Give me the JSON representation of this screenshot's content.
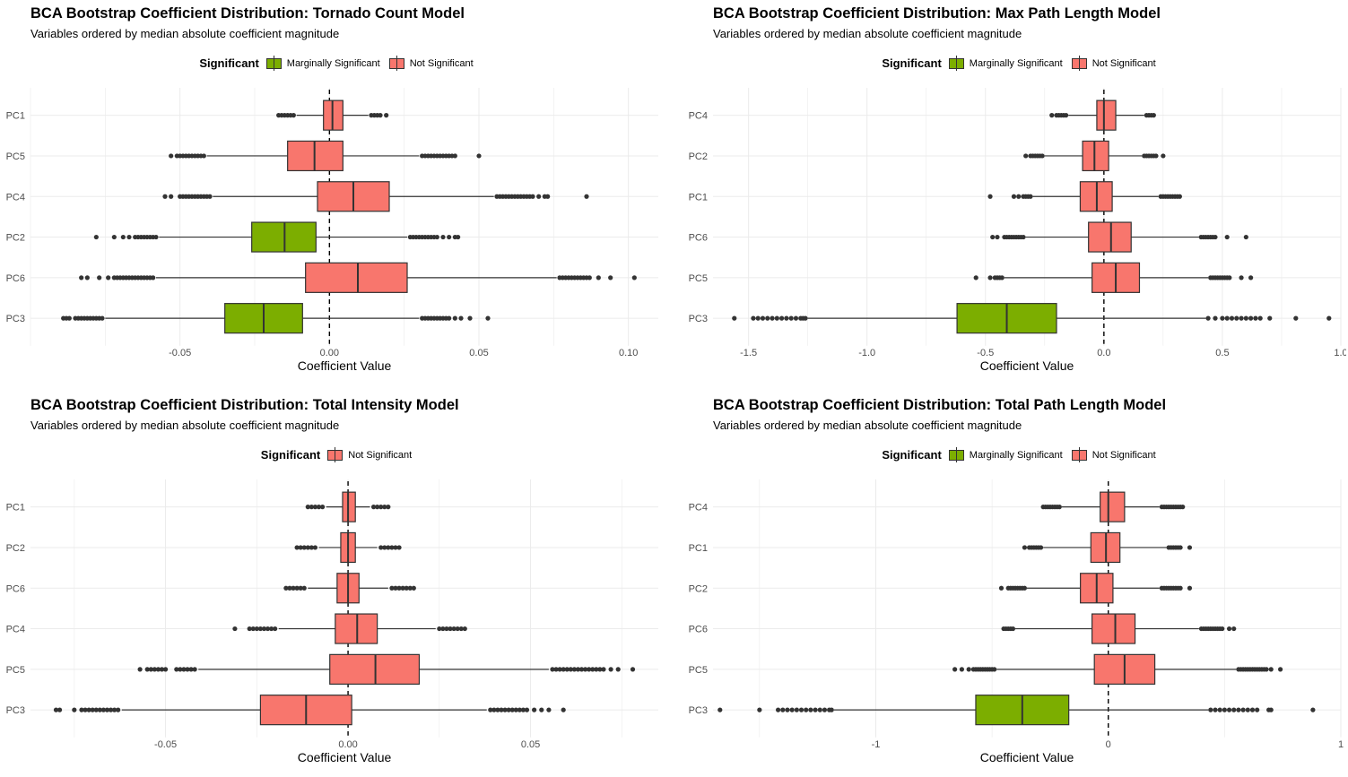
{
  "colors": {
    "marginal": "#7cae00",
    "not_sig": "#f8766d",
    "grid": "#ebebeb",
    "outline": "#333333",
    "outlier": "#333333"
  },
  "legend_title": "Significant",
  "chart_data": [
    {
      "type": "boxplot",
      "title": "BCA Bootstrap Coefficient Distribution: Tornado Count Model",
      "subtitle": "Variables ordered by median absolute coefficient magnitude",
      "xlabel": "Coefficient Value",
      "xlim": [
        -0.1,
        0.11
      ],
      "xticks": [
        -0.05,
        0.0,
        0.05,
        0.1
      ],
      "xtick_labels": [
        "-0.05",
        "0.00",
        "0.05",
        "0.10"
      ],
      "legend": [
        "Marginally Significant",
        "Not Significant"
      ],
      "series": [
        {
          "name": "PC1",
          "sig": "Not Significant",
          "q1": -0.002,
          "median": 0.001,
          "q3": 0.0045,
          "wlo": -0.011,
          "whi": 0.013,
          "outliers": [
            -0.017,
            -0.016,
            -0.015,
            -0.014,
            -0.013,
            -0.012,
            0.014,
            0.015,
            0.016,
            0.017,
            0.019
          ]
        },
        {
          "name": "PC5",
          "sig": "Not Significant",
          "q1": -0.014,
          "median": -0.005,
          "q3": 0.0045,
          "wlo": -0.041,
          "whi": 0.03,
          "outliers": [
            -0.053,
            -0.051,
            -0.05,
            -0.049,
            -0.048,
            -0.047,
            -0.046,
            -0.045,
            -0.044,
            -0.043,
            -0.042,
            0.031,
            0.032,
            0.033,
            0.034,
            0.035,
            0.036,
            0.037,
            0.038,
            0.039,
            0.04,
            0.041,
            0.042,
            0.05
          ]
        },
        {
          "name": "PC4",
          "sig": "Not Significant",
          "q1": -0.004,
          "median": 0.008,
          "q3": 0.02,
          "wlo": -0.039,
          "whi": 0.055,
          "outliers": [
            -0.055,
            -0.053,
            -0.05,
            -0.049,
            -0.048,
            -0.047,
            -0.046,
            -0.045,
            -0.044,
            -0.043,
            -0.042,
            -0.041,
            -0.04,
            0.056,
            0.057,
            0.058,
            0.059,
            0.06,
            0.061,
            0.062,
            0.063,
            0.064,
            0.065,
            0.066,
            0.067,
            0.068,
            0.07,
            0.072,
            0.073,
            0.086
          ]
        },
        {
          "name": "PC2",
          "sig": "Marginally Significant",
          "q1": -0.026,
          "median": -0.015,
          "q3": -0.0045,
          "wlo": -0.057,
          "whi": 0.026,
          "outliers": [
            -0.078,
            -0.072,
            -0.069,
            -0.067,
            -0.065,
            -0.064,
            -0.063,
            -0.062,
            -0.061,
            -0.06,
            -0.059,
            -0.058,
            0.027,
            0.028,
            0.029,
            0.03,
            0.031,
            0.032,
            0.033,
            0.034,
            0.035,
            0.036,
            0.038,
            0.04,
            0.042,
            0.043
          ]
        },
        {
          "name": "PC6",
          "sig": "Not Significant",
          "q1": -0.008,
          "median": 0.0095,
          "q3": 0.026,
          "wlo": -0.058,
          "whi": 0.076,
          "outliers": [
            -0.083,
            -0.081,
            -0.077,
            -0.074,
            -0.072,
            -0.071,
            -0.07,
            -0.069,
            -0.068,
            -0.067,
            -0.066,
            -0.065,
            -0.064,
            -0.063,
            -0.062,
            -0.061,
            -0.06,
            -0.059,
            0.077,
            0.078,
            0.079,
            0.08,
            0.081,
            0.082,
            0.083,
            0.084,
            0.085,
            0.086,
            0.087,
            0.09,
            0.094,
            0.102
          ]
        },
        {
          "name": "PC3",
          "sig": "Marginally Significant",
          "q1": -0.035,
          "median": -0.022,
          "q3": -0.009,
          "wlo": -0.075,
          "whi": 0.03,
          "outliers": [
            -0.089,
            -0.088,
            -0.087,
            -0.085,
            -0.084,
            -0.083,
            -0.082,
            -0.081,
            -0.08,
            -0.079,
            -0.078,
            -0.077,
            -0.076,
            0.031,
            0.032,
            0.033,
            0.034,
            0.035,
            0.036,
            0.037,
            0.038,
            0.039,
            0.04,
            0.042,
            0.044,
            0.047,
            0.053
          ]
        }
      ]
    },
    {
      "type": "boxplot",
      "title": "BCA Bootstrap Coefficient Distribution: Max Path Length Model",
      "subtitle": "Variables ordered by median absolute coefficient magnitude",
      "xlabel": "Coefficient Value",
      "xlim": [
        -1.65,
        1.0
      ],
      "xticks": [
        -1.5,
        -1.0,
        -0.5,
        0.0,
        0.5,
        1.0
      ],
      "xtick_labels": [
        "-1.5",
        "-1.0",
        "-0.5",
        "0.0",
        "0.5",
        "1.0"
      ],
      "legend": [
        "Marginally Significant",
        "Not Significant"
      ],
      "series": [
        {
          "name": "PC4",
          "sig": "Not Significant",
          "q1": -0.03,
          "median": 0.0,
          "q3": 0.05,
          "wlo": -0.15,
          "whi": 0.17,
          "outliers": [
            -0.22,
            -0.2,
            -0.19,
            -0.18,
            -0.17,
            -0.16,
            0.18,
            0.19,
            0.2,
            0.21
          ]
        },
        {
          "name": "PC2",
          "sig": "Not Significant",
          "q1": -0.09,
          "median": -0.04,
          "q3": 0.02,
          "wlo": -0.25,
          "whi": 0.16,
          "outliers": [
            -0.33,
            -0.31,
            -0.3,
            -0.29,
            -0.28,
            -0.27,
            -0.26,
            0.17,
            0.18,
            0.19,
            0.2,
            0.21,
            0.22,
            0.25
          ]
        },
        {
          "name": "PC1",
          "sig": "Not Significant",
          "q1": -0.1,
          "median": -0.03,
          "q3": 0.035,
          "wlo": -0.3,
          "whi": 0.23,
          "outliers": [
            -0.48,
            -0.38,
            -0.36,
            -0.34,
            -0.33,
            -0.32,
            -0.31,
            0.24,
            0.25,
            0.26,
            0.27,
            0.28,
            0.29,
            0.3,
            0.31,
            0.32
          ]
        },
        {
          "name": "PC6",
          "sig": "Not Significant",
          "q1": -0.065,
          "median": 0.03,
          "q3": 0.115,
          "wlo": -0.33,
          "whi": 0.4,
          "outliers": [
            -0.47,
            -0.45,
            -0.42,
            -0.41,
            -0.4,
            -0.39,
            -0.38,
            -0.37,
            -0.36,
            -0.35,
            -0.34,
            0.41,
            0.42,
            0.43,
            0.44,
            0.45,
            0.46,
            0.47,
            0.52,
            0.6
          ]
        },
        {
          "name": "PC5",
          "sig": "Not Significant",
          "q1": -0.05,
          "median": 0.05,
          "q3": 0.15,
          "wlo": -0.42,
          "whi": 0.44,
          "outliers": [
            -0.54,
            -0.48,
            -0.46,
            -0.45,
            -0.44,
            -0.43,
            0.45,
            0.46,
            0.47,
            0.48,
            0.49,
            0.5,
            0.51,
            0.52,
            0.53,
            0.58,
            0.62
          ]
        },
        {
          "name": "PC3",
          "sig": "Marginally Significant",
          "q1": -0.62,
          "median": -0.41,
          "q3": -0.2,
          "wlo": -1.25,
          "whi": 0.43,
          "outliers": [
            -1.56,
            -1.48,
            -1.46,
            -1.44,
            -1.42,
            -1.4,
            -1.38,
            -1.36,
            -1.34,
            -1.32,
            -1.3,
            -1.28,
            -1.27,
            -1.26,
            0.44,
            0.47,
            0.5,
            0.52,
            0.54,
            0.56,
            0.58,
            0.6,
            0.62,
            0.64,
            0.66,
            0.7,
            0.81,
            0.95
          ]
        }
      ]
    },
    {
      "type": "boxplot",
      "title": "BCA Bootstrap Coefficient Distribution: Total Intensity Model",
      "subtitle": "Variables ordered by median absolute coefficient magnitude",
      "xlabel": "Coefficient Value",
      "xlim": [
        -0.087,
        0.085
      ],
      "xticks": [
        -0.05,
        0.0,
        0.05
      ],
      "xtick_labels": [
        "-0.05",
        "0.00",
        "0.05"
      ],
      "legend": [
        "Not Significant"
      ],
      "series": [
        {
          "name": "PC1",
          "sig": "Not Significant",
          "q1": -0.0015,
          "median": 0.0,
          "q3": 0.002,
          "wlo": -0.006,
          "whi": 0.006,
          "outliers": [
            -0.011,
            -0.01,
            -0.009,
            -0.008,
            -0.007,
            0.007,
            0.008,
            0.009,
            0.01,
            0.011
          ]
        },
        {
          "name": "PC2",
          "sig": "Not Significant",
          "q1": -0.002,
          "median": 0.0,
          "q3": 0.002,
          "wlo": -0.008,
          "whi": 0.008,
          "outliers": [
            -0.014,
            -0.013,
            -0.012,
            -0.011,
            -0.01,
            -0.009,
            0.009,
            0.01,
            0.011,
            0.012,
            0.013,
            0.014
          ]
        },
        {
          "name": "PC6",
          "sig": "Not Significant",
          "q1": -0.003,
          "median": 0.0,
          "q3": 0.003,
          "wlo": -0.011,
          "whi": 0.011,
          "outliers": [
            -0.017,
            -0.016,
            -0.015,
            -0.014,
            -0.013,
            -0.012,
            0.012,
            0.013,
            0.014,
            0.015,
            0.016,
            0.017,
            0.018
          ]
        },
        {
          "name": "PC4",
          "sig": "Not Significant",
          "q1": -0.0035,
          "median": 0.0025,
          "q3": 0.008,
          "wlo": -0.019,
          "whi": 0.024,
          "outliers": [
            -0.031,
            -0.027,
            -0.026,
            -0.025,
            -0.024,
            -0.023,
            -0.022,
            -0.021,
            -0.02,
            0.025,
            0.026,
            0.027,
            0.028,
            0.029,
            0.03,
            0.031,
            0.032
          ]
        },
        {
          "name": "PC5",
          "sig": "Not Significant",
          "q1": -0.005,
          "median": 0.0075,
          "q3": 0.0195,
          "wlo": -0.041,
          "whi": 0.055,
          "outliers": [
            -0.057,
            -0.055,
            -0.054,
            -0.053,
            -0.052,
            -0.051,
            -0.05,
            -0.047,
            -0.046,
            -0.045,
            -0.044,
            -0.043,
            -0.042,
            0.056,
            0.057,
            0.058,
            0.059,
            0.06,
            0.061,
            0.062,
            0.063,
            0.064,
            0.065,
            0.066,
            0.067,
            0.068,
            0.069,
            0.07,
            0.072,
            0.074,
            0.078
          ]
        },
        {
          "name": "PC3",
          "sig": "Not Significant",
          "q1": -0.024,
          "median": -0.0115,
          "q3": 0.001,
          "wlo": -0.062,
          "whi": 0.038,
          "outliers": [
            -0.08,
            -0.079,
            -0.075,
            -0.073,
            -0.072,
            -0.071,
            -0.07,
            -0.069,
            -0.068,
            -0.067,
            -0.066,
            -0.065,
            -0.064,
            -0.063,
            0.039,
            0.04,
            0.041,
            0.042,
            0.043,
            0.044,
            0.045,
            0.046,
            0.047,
            0.048,
            0.049,
            0.051,
            0.053,
            0.055,
            0.059
          ]
        }
      ]
    },
    {
      "type": "boxplot",
      "title": "BCA Bootstrap Coefficient Distribution: Total Path Length Model",
      "subtitle": "Variables ordered by median absolute coefficient magnitude",
      "xlabel": "Coefficient Value",
      "xlim": [
        -1.7,
        1.0
      ],
      "xticks": [
        -1,
        0,
        1
      ],
      "xtick_labels": [
        "-1",
        "0",
        "1"
      ],
      "legend": [
        "Marginally Significant",
        "Not Significant"
      ],
      "series": [
        {
          "name": "PC4",
          "sig": "Not Significant",
          "q1": -0.035,
          "median": 0.0,
          "q3": 0.07,
          "wlo": -0.2,
          "whi": 0.22,
          "outliers": [
            -0.28,
            -0.27,
            -0.26,
            -0.25,
            -0.24,
            -0.23,
            -0.22,
            -0.21,
            0.23,
            0.24,
            0.25,
            0.26,
            0.27,
            0.28,
            0.29,
            0.3,
            0.31,
            0.32
          ]
        },
        {
          "name": "PC1",
          "sig": "Not Significant",
          "q1": -0.075,
          "median": -0.01,
          "q3": 0.05,
          "wlo": -0.28,
          "whi": 0.25,
          "outliers": [
            -0.36,
            -0.34,
            -0.33,
            -0.32,
            -0.31,
            -0.3,
            -0.29,
            0.26,
            0.27,
            0.28,
            0.29,
            0.3,
            0.31,
            0.35
          ]
        },
        {
          "name": "PC2",
          "sig": "Not Significant",
          "q1": -0.12,
          "median": -0.05,
          "q3": 0.02,
          "wlo": -0.35,
          "whi": 0.22,
          "outliers": [
            -0.46,
            -0.43,
            -0.42,
            -0.41,
            -0.4,
            -0.39,
            -0.38,
            -0.37,
            -0.36,
            0.23,
            0.24,
            0.25,
            0.26,
            0.27,
            0.28,
            0.29,
            0.3,
            0.31,
            0.35
          ]
        },
        {
          "name": "PC6",
          "sig": "Not Significant",
          "q1": -0.07,
          "median": 0.03,
          "q3": 0.115,
          "wlo": -0.4,
          "whi": 0.39,
          "outliers": [
            -0.45,
            -0.44,
            -0.43,
            -0.42,
            -0.41,
            0.4,
            0.41,
            0.42,
            0.43,
            0.44,
            0.45,
            0.46,
            0.47,
            0.48,
            0.49,
            0.52,
            0.54
          ]
        },
        {
          "name": "PC5",
          "sig": "Not Significant",
          "q1": -0.06,
          "median": 0.07,
          "q3": 0.2,
          "wlo": -0.48,
          "whi": 0.55,
          "outliers": [
            -0.66,
            -0.63,
            -0.6,
            -0.58,
            -0.57,
            -0.56,
            -0.55,
            -0.54,
            -0.53,
            -0.52,
            -0.51,
            -0.5,
            -0.49,
            0.56,
            0.57,
            0.58,
            0.59,
            0.6,
            0.61,
            0.62,
            0.63,
            0.64,
            0.65,
            0.66,
            0.67,
            0.68,
            0.7,
            0.74
          ]
        },
        {
          "name": "PC3",
          "sig": "Marginally Significant",
          "q1": -0.57,
          "median": -0.37,
          "q3": -0.17,
          "wlo": -1.18,
          "whi": 0.43,
          "outliers": [
            -1.67,
            -1.5,
            -1.42,
            -1.4,
            -1.38,
            -1.36,
            -1.34,
            -1.32,
            -1.3,
            -1.28,
            -1.26,
            -1.24,
            -1.22,
            -1.2,
            -1.19,
            0.44,
            0.46,
            0.48,
            0.5,
            0.52,
            0.54,
            0.56,
            0.58,
            0.6,
            0.62,
            0.64,
            0.69,
            0.7,
            0.88
          ]
        }
      ]
    }
  ]
}
